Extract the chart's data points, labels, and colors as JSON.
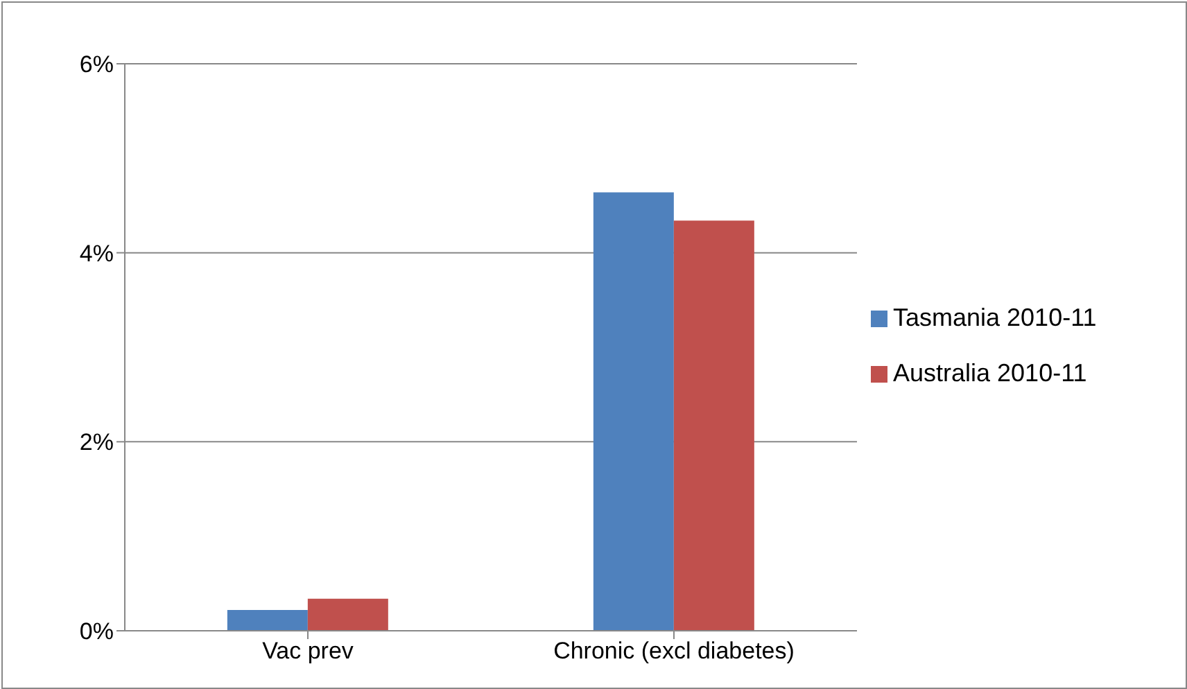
{
  "chart_data": {
    "type": "bar",
    "categories": [
      "Vac prev",
      "Chronic (excl diabetes)"
    ],
    "series": [
      {
        "name": "Tasmania 2010-11",
        "color": "#4f81bd",
        "values": [
          0.22,
          4.64
        ]
      },
      {
        "name": "Australia 2010-11",
        "color": "#c0504d",
        "values": [
          0.34,
          4.34
        ]
      }
    ],
    "ylim": [
      0,
      6
    ],
    "yticks": [
      {
        "value": 0,
        "label": "0%"
      },
      {
        "value": 2,
        "label": "2%"
      },
      {
        "value": 4,
        "label": "4%"
      },
      {
        "value": 6,
        "label": "6%"
      }
    ],
    "grid": "y",
    "legend": "right"
  }
}
